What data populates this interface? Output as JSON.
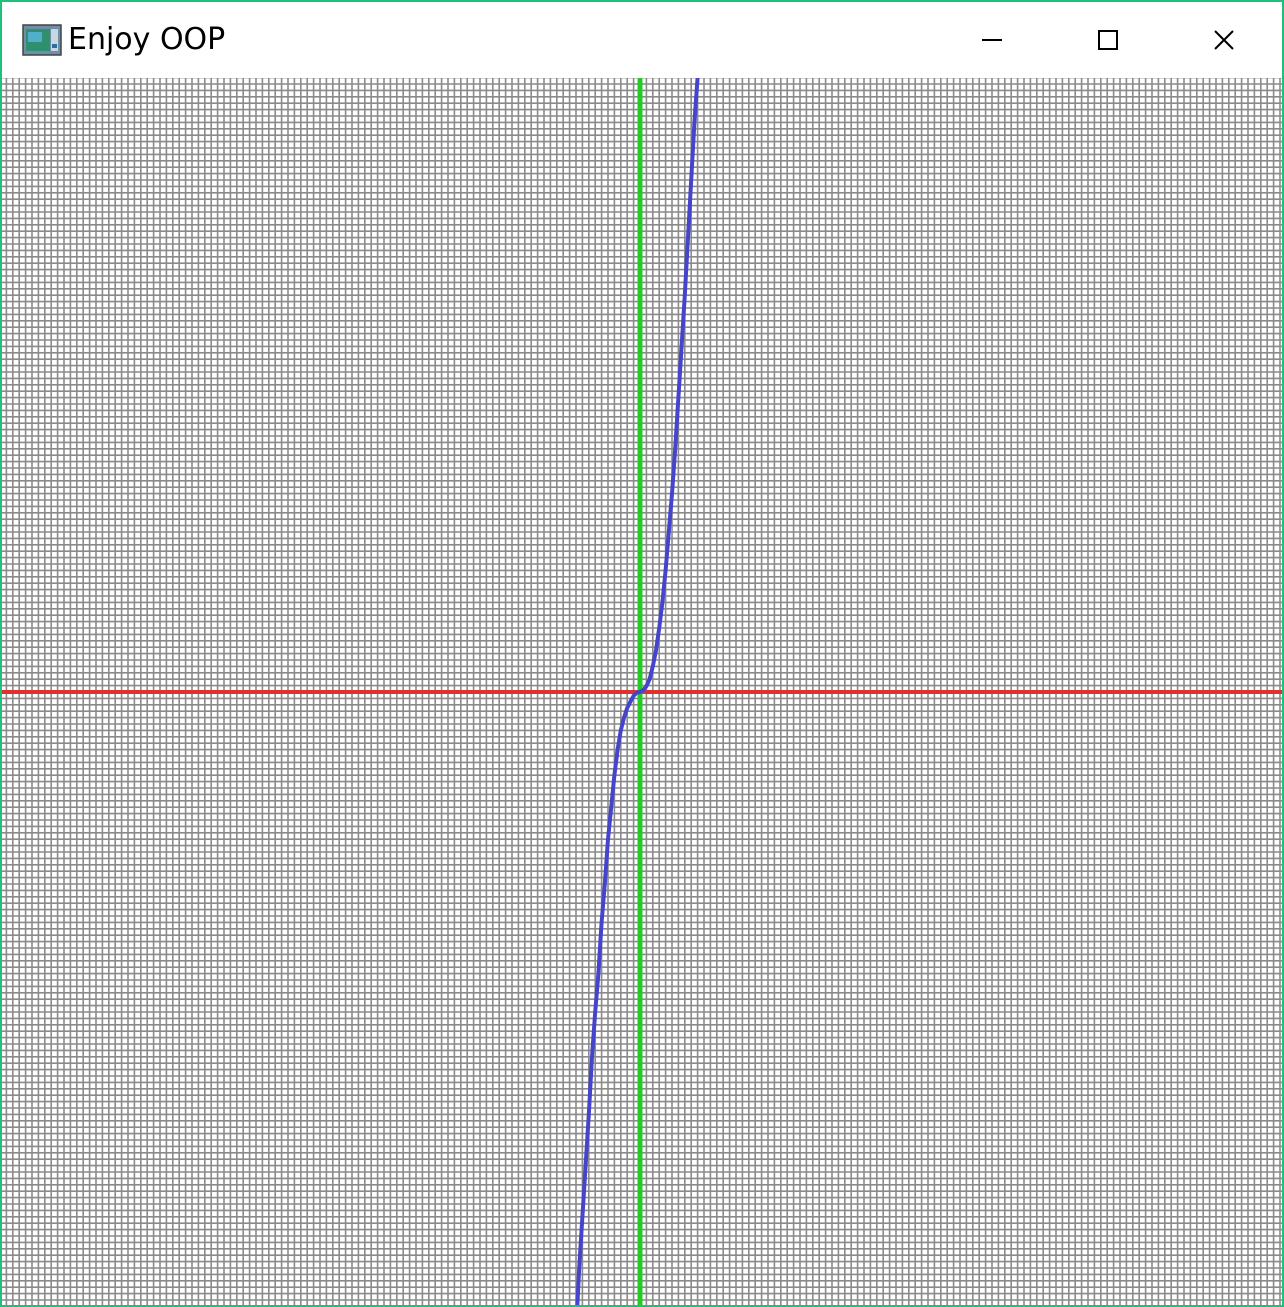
{
  "window": {
    "title": "Enjoy OOP",
    "icon": "app-window-icon",
    "controls": [
      {
        "name": "minimize",
        "icon": "minimize-icon"
      },
      {
        "name": "maximize",
        "icon": "maximize-icon"
      },
      {
        "name": "close",
        "icon": "close-icon"
      }
    ],
    "border_color": "#1fc07a"
  },
  "chart_data": {
    "type": "line",
    "grid": true,
    "grid_color": "#8a8a8a",
    "x_axis_color": "#e03030",
    "y_axis_color": "#22cc22",
    "series_color": "#4444cc",
    "xlim": [
      -100,
      100
    ],
    "ylim": [
      -96,
      96
    ],
    "series": [
      {
        "x": [
          -10,
          -9.5,
          -9,
          -8.5,
          -8,
          -7.5,
          -7,
          -6.5,
          -6,
          -5.5,
          -5,
          -4.5,
          -4,
          -3.5,
          -3,
          -2.5,
          -2,
          -1.5,
          -1,
          -0.5,
          0,
          0.5,
          1,
          1.5,
          2,
          2.5,
          3,
          3.5,
          4,
          4.5,
          5,
          5.5,
          6,
          6.5,
          7,
          7.5,
          8,
          8.5,
          9
        ],
        "y": [
          -100,
          -90,
          -82,
          -74,
          -66,
          -57,
          -50,
          -44,
          -36,
          -30,
          -23,
          -18,
          -13,
          -9,
          -6,
          -4,
          -2.5,
          -1.5,
          -0.6,
          -0.1,
          0,
          0.3,
          0.9,
          2,
          4,
          6.5,
          10,
          14,
          19,
          25,
          31,
          38,
          46,
          54,
          62,
          71,
          80,
          89,
          96
        ]
      }
    ]
  }
}
